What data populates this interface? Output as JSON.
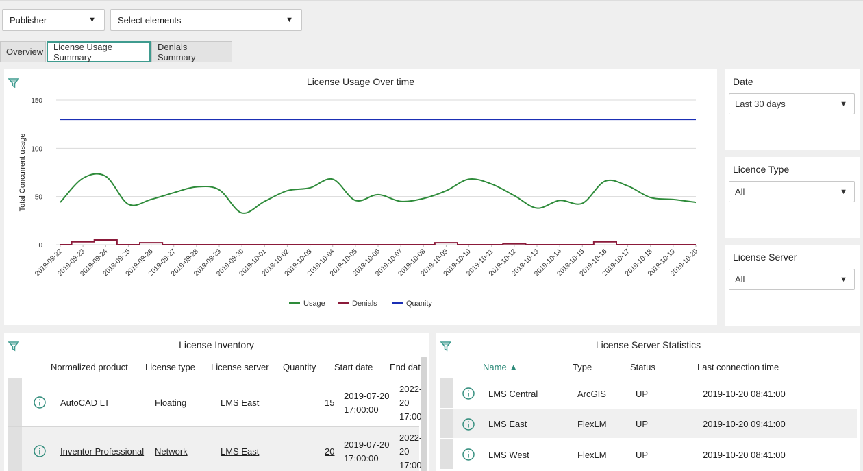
{
  "filters": {
    "publisher": "Publisher",
    "elements": "Select elements"
  },
  "tabs": [
    {
      "label": "Overview",
      "active": false
    },
    {
      "label": "License Usage Summary",
      "active": true
    },
    {
      "label": "Denials Summary",
      "active": false
    }
  ],
  "chart_panel": {
    "title": "License Usage Over time"
  },
  "chart_data": {
    "type": "line",
    "title": "License Usage Over time",
    "ylabel": "Total Concurrent usage",
    "xlabel": "",
    "ylim": [
      0,
      150
    ],
    "yticks": [
      0,
      50,
      100,
      150
    ],
    "legend_position": "bottom",
    "grid": true,
    "x": [
      "2019-09-22",
      "2019-09-23",
      "2019-09-24",
      "2019-09-25",
      "2019-09-26",
      "2019-09-27",
      "2019-09-28",
      "2019-09-29",
      "2019-09-30",
      "2019-10-01",
      "2019-10-02",
      "2019-10-03",
      "2019-10-04",
      "2019-10-05",
      "2019-10-06",
      "2019-10-07",
      "2019-10-08",
      "2019-10-09",
      "2019-10-10",
      "2019-10-11",
      "2019-10-12",
      "2019-10-13",
      "2019-10-14",
      "2019-10-15",
      "2019-10-16",
      "2019-10-17",
      "2019-10-18",
      "2019-10-19",
      "2019-10-20"
    ],
    "series": [
      {
        "name": "Usage",
        "color": "#2e8b3a",
        "smooth": true,
        "step": false,
        "values": [
          44,
          69,
          71,
          42,
          47,
          54,
          60,
          57,
          33,
          45,
          56,
          59,
          68,
          46,
          52,
          45,
          48,
          56,
          68,
          63,
          51,
          38,
          46,
          43,
          66,
          61,
          49,
          47,
          44
        ]
      },
      {
        "name": "Denials",
        "color": "#8b1a3a",
        "smooth": false,
        "step": true,
        "values": [
          0,
          3,
          5,
          0,
          2,
          0,
          0,
          0,
          0,
          0,
          0,
          0,
          0,
          0,
          0,
          0,
          0,
          2,
          0,
          0,
          1,
          0,
          0,
          0,
          3,
          0,
          0,
          0,
          0
        ]
      },
      {
        "name": "Quanity",
        "color": "#1b2fb5",
        "smooth": false,
        "step": false,
        "values": [
          130,
          130,
          130,
          130,
          130,
          130,
          130,
          130,
          130,
          130,
          130,
          130,
          130,
          130,
          130,
          130,
          130,
          130,
          130,
          130,
          130,
          130,
          130,
          130,
          130,
          130,
          130,
          130,
          130
        ]
      }
    ]
  },
  "side_filters": [
    {
      "label": "Date",
      "value": "Last 30 days"
    },
    {
      "label": "Licence Type",
      "value": "All"
    },
    {
      "label": "License Server",
      "value": "All"
    }
  ],
  "inventory": {
    "title": "License Inventory",
    "columns": [
      "Normalized product",
      "License type",
      "License server",
      "Quantity",
      "Start date",
      "End dat"
    ],
    "rows": [
      {
        "product": "AutoCAD LT",
        "type": "Floating",
        "server": "LMS East",
        "quantity": "15",
        "start1": "2019-07-20",
        "start2": "17:00:00",
        "end1": "2022-(",
        "end2": "20",
        "end3": "17:00:"
      },
      {
        "product": "Inventor Professional",
        "type": "Network",
        "server": "LMS East",
        "quantity": "20",
        "start1": "2019-07-20",
        "start2": "17:00:00",
        "end1": "2022-(",
        "end2": "20",
        "end3": "17:00:"
      }
    ]
  },
  "server_stats": {
    "title": "License Server Statistics",
    "columns": [
      "Name ▲",
      "Type",
      "Status",
      "Last connection time"
    ],
    "rows": [
      {
        "name": "LMS Central",
        "type": "ArcGIS",
        "status": "UP",
        "last": "2019-10-20 08:41:00"
      },
      {
        "name": "LMS East",
        "type": "FlexLM",
        "status": "UP",
        "last": "2019-10-20 09:41:00"
      },
      {
        "name": "LMS West",
        "type": "FlexLM",
        "status": "UP",
        "last": "2019-10-20 08:41:00"
      }
    ]
  }
}
